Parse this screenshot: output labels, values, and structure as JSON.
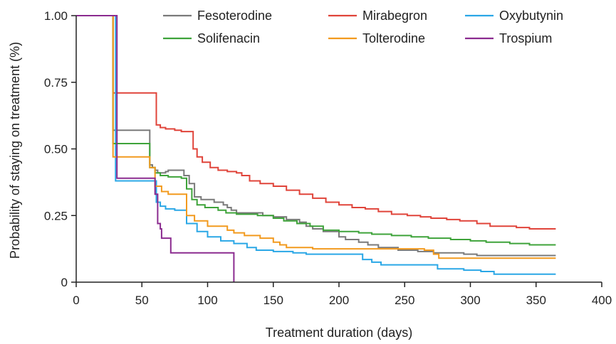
{
  "chart_data": {
    "type": "line",
    "step": true,
    "xlabel": "Treatment duration (days)",
    "ylabel": "Probability of staying on treatment (%)",
    "xlim": [
      0,
      400
    ],
    "ylim": [
      0,
      1.0
    ],
    "xticks": [
      0,
      50,
      100,
      150,
      200,
      250,
      300,
      350,
      400
    ],
    "yticks": [
      0,
      0.25,
      0.5,
      0.75,
      1.0
    ],
    "yticklabels": [
      "0",
      "0.25",
      "0.50",
      "0.75",
      "1.00"
    ],
    "grid": false,
    "legend_position": "top",
    "series": [
      {
        "name": "Fesoterodine",
        "color": "#7a7a7a",
        "points": [
          [
            0,
            1.0
          ],
          [
            28,
            1.0
          ],
          [
            28,
            0.57
          ],
          [
            56,
            0.57
          ],
          [
            56,
            0.44
          ],
          [
            58,
            0.43
          ],
          [
            60,
            0.42
          ],
          [
            62,
            0.41
          ],
          [
            68,
            0.415
          ],
          [
            70,
            0.415
          ],
          [
            70,
            0.42
          ],
          [
            78,
            0.42
          ],
          [
            82,
            0.4
          ],
          [
            86,
            0.37
          ],
          [
            90,
            0.35
          ],
          [
            90,
            0.32
          ],
          [
            95,
            0.31
          ],
          [
            105,
            0.3
          ],
          [
            112,
            0.29
          ],
          [
            115,
            0.28
          ],
          [
            118,
            0.27
          ],
          [
            122,
            0.26
          ],
          [
            130,
            0.26
          ],
          [
            142,
            0.25
          ],
          [
            150,
            0.245
          ],
          [
            160,
            0.235
          ],
          [
            170,
            0.225
          ],
          [
            175,
            0.21
          ],
          [
            180,
            0.2
          ],
          [
            188,
            0.19
          ],
          [
            200,
            0.17
          ],
          [
            205,
            0.16
          ],
          [
            215,
            0.15
          ],
          [
            222,
            0.14
          ],
          [
            230,
            0.13
          ],
          [
            245,
            0.12
          ],
          [
            260,
            0.115
          ],
          [
            272,
            0.11
          ],
          [
            295,
            0.105
          ],
          [
            305,
            0.1
          ],
          [
            365,
            0.1
          ]
        ]
      },
      {
        "name": "Mirabegron",
        "color": "#e0443a",
        "points": [
          [
            0,
            1.0
          ],
          [
            28,
            1.0
          ],
          [
            28,
            0.71
          ],
          [
            61,
            0.71
          ],
          [
            61,
            0.59
          ],
          [
            64,
            0.58
          ],
          [
            68,
            0.575
          ],
          [
            75,
            0.57
          ],
          [
            80,
            0.565
          ],
          [
            89,
            0.565
          ],
          [
            89,
            0.5
          ],
          [
            92,
            0.47
          ],
          [
            96,
            0.45
          ],
          [
            102,
            0.43
          ],
          [
            108,
            0.42
          ],
          [
            115,
            0.415
          ],
          [
            122,
            0.41
          ],
          [
            126,
            0.4
          ],
          [
            132,
            0.38
          ],
          [
            140,
            0.37
          ],
          [
            150,
            0.36
          ],
          [
            160,
            0.345
          ],
          [
            170,
            0.33
          ],
          [
            180,
            0.315
          ],
          [
            190,
            0.3
          ],
          [
            200,
            0.29
          ],
          [
            210,
            0.28
          ],
          [
            220,
            0.275
          ],
          [
            230,
            0.265
          ],
          [
            240,
            0.255
          ],
          [
            252,
            0.25
          ],
          [
            262,
            0.245
          ],
          [
            270,
            0.24
          ],
          [
            282,
            0.235
          ],
          [
            292,
            0.23
          ],
          [
            305,
            0.22
          ],
          [
            315,
            0.21
          ],
          [
            335,
            0.205
          ],
          [
            345,
            0.2
          ],
          [
            365,
            0.2
          ]
        ]
      },
      {
        "name": "Oxybutynin",
        "color": "#2aa7e6",
        "points": [
          [
            0,
            1.0
          ],
          [
            30,
            1.0
          ],
          [
            30,
            0.38
          ],
          [
            61,
            0.38
          ],
          [
            61,
            0.3
          ],
          [
            64,
            0.285
          ],
          [
            68,
            0.275
          ],
          [
            75,
            0.27
          ],
          [
            84,
            0.27
          ],
          [
            84,
            0.22
          ],
          [
            92,
            0.19
          ],
          [
            100,
            0.17
          ],
          [
            110,
            0.155
          ],
          [
            120,
            0.145
          ],
          [
            130,
            0.13
          ],
          [
            137,
            0.12
          ],
          [
            150,
            0.115
          ],
          [
            165,
            0.11
          ],
          [
            175,
            0.105
          ],
          [
            218,
            0.105
          ],
          [
            218,
            0.085
          ],
          [
            225,
            0.075
          ],
          [
            232,
            0.065
          ],
          [
            275,
            0.065
          ],
          [
            275,
            0.05
          ],
          [
            295,
            0.045
          ],
          [
            308,
            0.04
          ],
          [
            318,
            0.04
          ],
          [
            318,
            0.03
          ],
          [
            365,
            0.03
          ]
        ]
      },
      {
        "name": "Solifenacin",
        "color": "#3ea33a",
        "points": [
          [
            0,
            1.0
          ],
          [
            28,
            1.0
          ],
          [
            28,
            0.52
          ],
          [
            56,
            0.52
          ],
          [
            56,
            0.43
          ],
          [
            60,
            0.41
          ],
          [
            64,
            0.4
          ],
          [
            70,
            0.395
          ],
          [
            80,
            0.39
          ],
          [
            84,
            0.39
          ],
          [
            84,
            0.35
          ],
          [
            88,
            0.31
          ],
          [
            92,
            0.29
          ],
          [
            98,
            0.28
          ],
          [
            108,
            0.27
          ],
          [
            114,
            0.26
          ],
          [
            122,
            0.255
          ],
          [
            130,
            0.255
          ],
          [
            138,
            0.25
          ],
          [
            150,
            0.24
          ],
          [
            158,
            0.23
          ],
          [
            168,
            0.22
          ],
          [
            178,
            0.21
          ],
          [
            188,
            0.195
          ],
          [
            200,
            0.19
          ],
          [
            215,
            0.185
          ],
          [
            225,
            0.18
          ],
          [
            240,
            0.175
          ],
          [
            255,
            0.17
          ],
          [
            268,
            0.165
          ],
          [
            285,
            0.16
          ],
          [
            300,
            0.155
          ],
          [
            312,
            0.15
          ],
          [
            330,
            0.145
          ],
          [
            345,
            0.14
          ],
          [
            365,
            0.14
          ]
        ]
      },
      {
        "name": "Tolterodine",
        "color": "#f29a1e",
        "points": [
          [
            0,
            1.0
          ],
          [
            28,
            1.0
          ],
          [
            28,
            0.47
          ],
          [
            56,
            0.47
          ],
          [
            56,
            0.43
          ],
          [
            60,
            0.36
          ],
          [
            65,
            0.34
          ],
          [
            70,
            0.33
          ],
          [
            84,
            0.33
          ],
          [
            84,
            0.25
          ],
          [
            90,
            0.23
          ],
          [
            100,
            0.21
          ],
          [
            115,
            0.195
          ],
          [
            120,
            0.185
          ],
          [
            128,
            0.175
          ],
          [
            140,
            0.165
          ],
          [
            150,
            0.15
          ],
          [
            155,
            0.14
          ],
          [
            160,
            0.13
          ],
          [
            180,
            0.125
          ],
          [
            200,
            0.125
          ],
          [
            265,
            0.12
          ],
          [
            272,
            0.105
          ],
          [
            276,
            0.09
          ],
          [
            365,
            0.09
          ]
        ]
      },
      {
        "name": "Trospium",
        "color": "#8b2b8f",
        "points": [
          [
            0,
            1.0
          ],
          [
            31,
            1.0
          ],
          [
            31,
            0.39
          ],
          [
            60,
            0.39
          ],
          [
            60,
            0.33
          ],
          [
            62,
            0.22
          ],
          [
            64,
            0.2
          ],
          [
            65,
            0.165
          ],
          [
            72,
            0.165
          ],
          [
            72,
            0.11
          ],
          [
            120,
            0.11
          ],
          [
            120,
            0.0
          ]
        ]
      }
    ]
  }
}
